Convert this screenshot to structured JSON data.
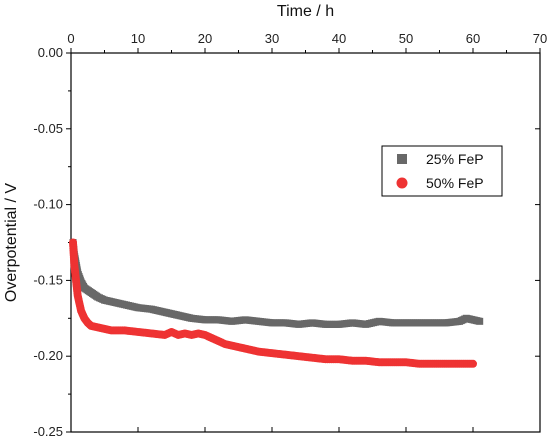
{
  "chart_data": {
    "type": "scatter",
    "xlabel": "Time / h",
    "ylabel": "Overpotential / V",
    "xlim": [
      0,
      70
    ],
    "ylim": [
      -0.25,
      0.0
    ],
    "x_ticks": [
      "0",
      "10",
      "20",
      "30",
      "40",
      "50",
      "60",
      "70"
    ],
    "y_ticks": [
      "0.00",
      "-0.05",
      "-0.10",
      "-0.15",
      "-0.20",
      "-0.25"
    ],
    "x_axis_position": "top",
    "grid": false,
    "legend_position": "upper-right",
    "series": [
      {
        "name": "25% FeP",
        "color": "#686868",
        "marker": "square",
        "x": [
          0.3,
          0.5,
          1,
          1.5,
          2,
          3,
          4,
          5,
          6,
          8,
          10,
          12,
          14,
          15,
          16,
          18,
          20,
          22,
          24,
          26,
          28,
          30,
          32,
          34,
          36,
          38,
          40,
          42,
          44,
          46,
          48,
          50,
          52,
          54,
          56,
          58,
          59,
          60,
          61
        ],
        "y": [
          -0.125,
          -0.133,
          -0.145,
          -0.151,
          -0.155,
          -0.158,
          -0.161,
          -0.163,
          -0.164,
          -0.166,
          -0.168,
          -0.169,
          -0.171,
          -0.172,
          -0.173,
          -0.175,
          -0.176,
          -0.176,
          -0.177,
          -0.176,
          -0.177,
          -0.178,
          -0.178,
          -0.179,
          -0.178,
          -0.179,
          -0.179,
          -0.178,
          -0.179,
          -0.177,
          -0.178,
          -0.178,
          -0.178,
          -0.178,
          -0.178,
          -0.177,
          -0.175,
          -0.176,
          -0.177
        ]
      },
      {
        "name": "50% FeP",
        "color": "#ee3333",
        "marker": "circle",
        "x": [
          0.3,
          0.5,
          1,
          1.5,
          2,
          2.5,
          3,
          4,
          5,
          6,
          8,
          10,
          12,
          14,
          15,
          16,
          17,
          18,
          19,
          20,
          21,
          22,
          23,
          24,
          26,
          28,
          30,
          32,
          34,
          36,
          38,
          40,
          42,
          44,
          46,
          48,
          50,
          52,
          54,
          56,
          58,
          60
        ],
        "y": [
          -0.125,
          -0.14,
          -0.16,
          -0.17,
          -0.175,
          -0.178,
          -0.18,
          -0.181,
          -0.182,
          -0.183,
          -0.183,
          -0.184,
          -0.185,
          -0.186,
          -0.184,
          -0.186,
          -0.185,
          -0.186,
          -0.185,
          -0.186,
          -0.188,
          -0.19,
          -0.192,
          -0.193,
          -0.195,
          -0.197,
          -0.198,
          -0.199,
          -0.2,
          -0.201,
          -0.202,
          -0.202,
          -0.203,
          -0.203,
          -0.204,
          -0.204,
          -0.204,
          -0.205,
          -0.205,
          -0.205,
          -0.205,
          -0.205
        ]
      }
    ]
  }
}
